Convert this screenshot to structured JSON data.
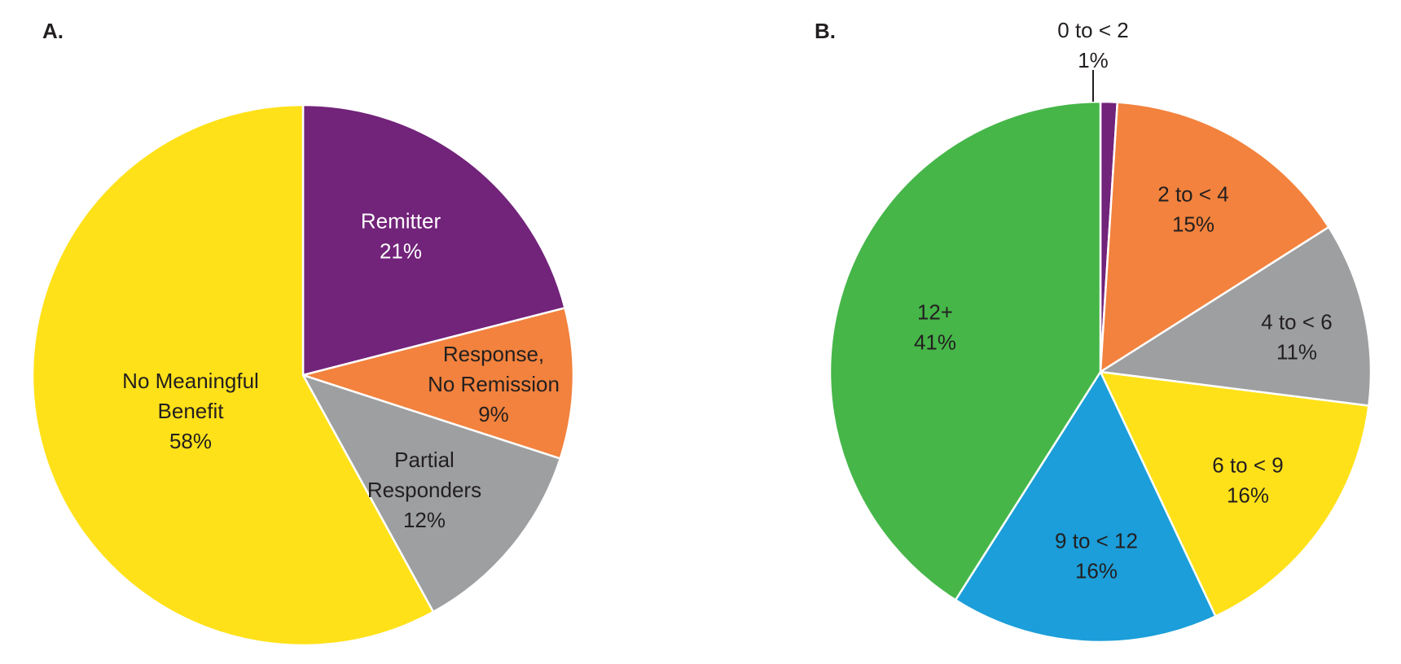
{
  "chart_data": [
    {
      "type": "pie",
      "panel_label": "A.",
      "slices": [
        {
          "label_lines": [
            "Remitter"
          ],
          "percent_label": "21%",
          "value": 21,
          "color": "#72237a",
          "text_color": "#ffffff"
        },
        {
          "label_lines": [
            "Response,",
            "No Remission"
          ],
          "percent_label": "9%",
          "value": 9,
          "color": "#f2823d",
          "text_color": "#231f20"
        },
        {
          "label_lines": [
            "Partial",
            "Responders"
          ],
          "percent_label": "12%",
          "value": 12,
          "color": "#9d9fa1",
          "text_color": "#231f20"
        },
        {
          "label_lines": [
            "No Meaningful",
            "Benefit"
          ],
          "percent_label": "58%",
          "value": 58,
          "color": "#ffe119",
          "text_color": "#231f20"
        }
      ]
    },
    {
      "type": "pie",
      "panel_label": "B.",
      "slices": [
        {
          "label_lines": [
            "0 to < 2"
          ],
          "percent_label": "1%",
          "value": 1,
          "color": "#72237a",
          "text_color": "#231f20",
          "outside": true
        },
        {
          "label_lines": [
            "2 to < 4"
          ],
          "percent_label": "15%",
          "value": 15,
          "color": "#f2823d",
          "text_color": "#231f20"
        },
        {
          "label_lines": [
            "4 to < 6"
          ],
          "percent_label": "11%",
          "value": 11,
          "color": "#9d9fa1",
          "text_color": "#231f20"
        },
        {
          "label_lines": [
            "6 to < 9"
          ],
          "percent_label": "16%",
          "value": 16,
          "color": "#ffe119",
          "text_color": "#231f20"
        },
        {
          "label_lines": [
            "9 to < 12"
          ],
          "percent_label": "16%",
          "value": 16,
          "color": "#1b9ed9",
          "text_color": "#231f20"
        },
        {
          "label_lines": [
            "12+"
          ],
          "percent_label": "41%",
          "value": 41,
          "color": "#46b649",
          "text_color": "#231f20"
        }
      ]
    }
  ]
}
